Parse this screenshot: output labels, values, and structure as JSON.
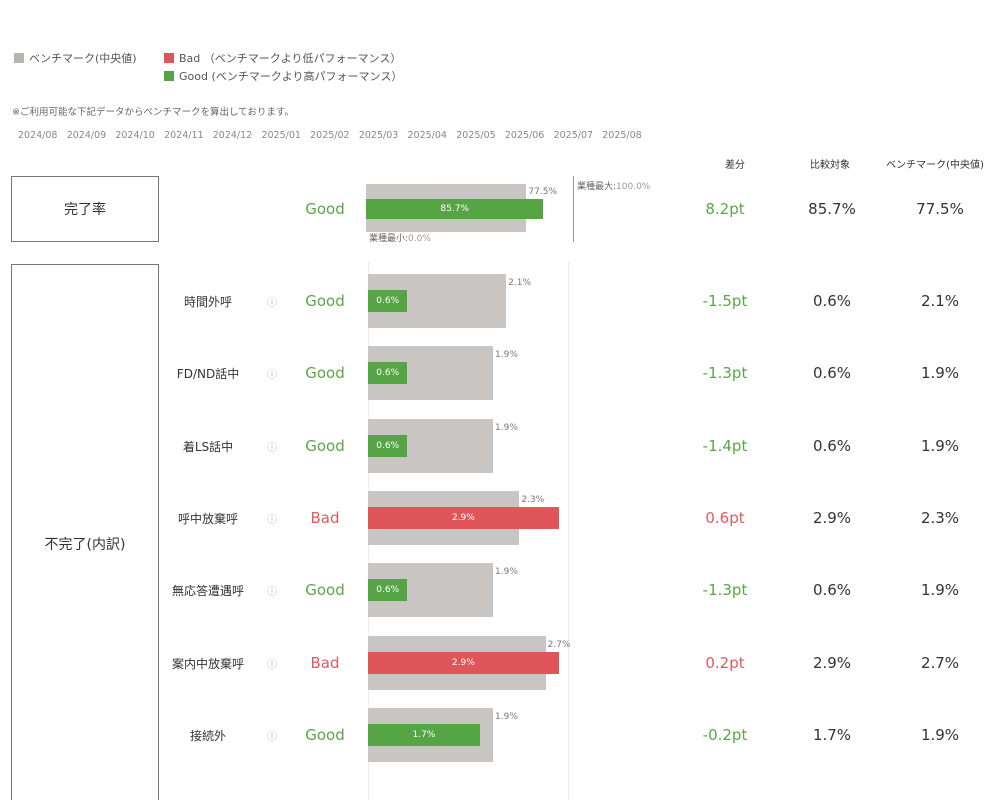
{
  "legend": {
    "benchmark": {
      "label": "ベンチマーク(中央値)",
      "color": "#b8b4b2"
    },
    "bad": {
      "label": "Bad （ベンチマークより低パフォーマンス）",
      "color": "#e0555a"
    },
    "good": {
      "label": "Good (ベンチマークより高パフォーマンス）",
      "color": "#55a545"
    }
  },
  "note": "※ご利用可能な下記データからベンチマークを算出しております。",
  "months": [
    "2024/08",
    "2024/09",
    "2024/10",
    "2024/11",
    "2024/12",
    "2025/01",
    "2025/02",
    "2025/03",
    "2025/04",
    "2025/05",
    "2025/06",
    "2025/07",
    "2025/08"
  ],
  "columns": {
    "diff": "差分",
    "compare": "比較対象",
    "benchmark": "ベンチマーク(中央値)"
  },
  "completion": {
    "group_label": "完了率",
    "status": "Good",
    "max_label": "業種最大:",
    "max_value": "100.0%",
    "min_label": "業種最小:",
    "min_value": "0.0%"
  },
  "incomplete_group_label": "不完了(内訳)",
  "info_icon": "ⓘ",
  "chart_data": [
    {
      "type": "bar",
      "name": "完了率",
      "categories": [
        "完了率"
      ],
      "series": [
        {
          "name": "ベンチマーク(中央値)",
          "values": [
            77.5
          ]
        },
        {
          "name": "比較対象",
          "values": [
            85.7
          ]
        }
      ],
      "labels": {
        "benchmark": [
          "77.5%"
        ],
        "compare": [
          "85.7%"
        ]
      },
      "status": [
        "good"
      ],
      "diff": [
        "8.2pt"
      ],
      "compare_text": [
        "85.7%"
      ],
      "benchmark_text": [
        "77.5%"
      ],
      "xlim": [
        0,
        100
      ]
    },
    {
      "type": "bar",
      "name": "不完了(内訳)",
      "categories": [
        "時間外呼",
        "FD/ND話中",
        "着LS話中",
        "呼中放棄呼",
        "無応答遭遇呼",
        "案内中放棄呼",
        "接続外"
      ],
      "series": [
        {
          "name": "ベンチマーク(中央値)",
          "values": [
            2.1,
            1.9,
            1.9,
            2.3,
            1.9,
            2.7,
            1.9
          ]
        },
        {
          "name": "比較対象",
          "values": [
            0.6,
            0.6,
            0.6,
            2.9,
            0.6,
            2.9,
            1.7
          ]
        }
      ],
      "labels": {
        "benchmark": [
          "2.1%",
          "1.9%",
          "1.9%",
          "2.3%",
          "1.9%",
          "2.7%",
          "1.9%"
        ],
        "compare": [
          "0.6%",
          "0.6%",
          "0.6%",
          "2.9%",
          "0.6%",
          "2.9%",
          "1.7%"
        ]
      },
      "status_text": [
        "Good",
        "Good",
        "Good",
        "Bad",
        "Good",
        "Bad",
        "Good"
      ],
      "status": [
        "good",
        "good",
        "good",
        "bad",
        "good",
        "bad",
        "good"
      ],
      "diff": [
        "-1.5pt",
        "-1.3pt",
        "-1.4pt",
        "0.6pt",
        "-1.3pt",
        "0.2pt",
        "-0.2pt"
      ],
      "compare_text": [
        "0.6%",
        "0.6%",
        "0.6%",
        "2.9%",
        "0.6%",
        "2.9%",
        "1.7%"
      ],
      "benchmark_text": [
        "2.1%",
        "1.9%",
        "1.9%",
        "2.3%",
        "1.9%",
        "2.7%",
        "1.9%"
      ],
      "xlim": [
        0,
        3.05
      ]
    }
  ]
}
